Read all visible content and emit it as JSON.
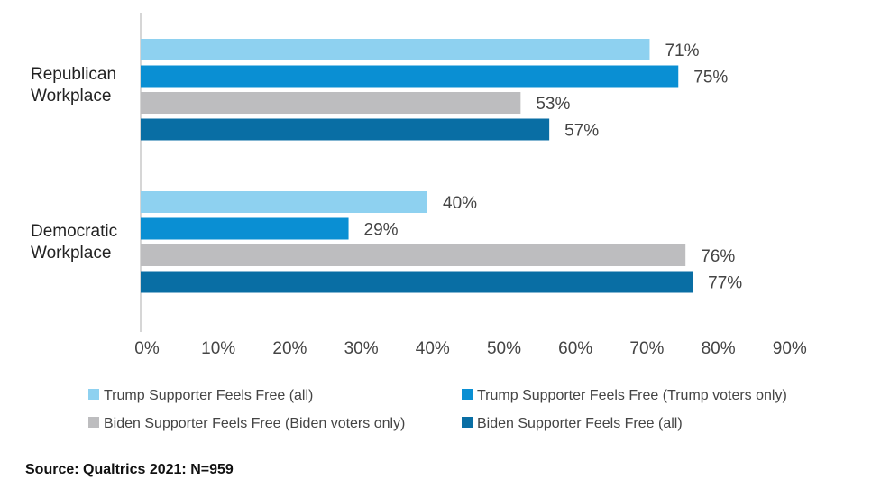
{
  "chart_data": {
    "type": "bar",
    "orientation": "horizontal",
    "title": "",
    "xlabel": "",
    "ylabel": "",
    "xlim": [
      0,
      90
    ],
    "x_ticks": [
      "0%",
      "10%",
      "20%",
      "30%",
      "40%",
      "50%",
      "60%",
      "70%",
      "80%",
      "90%"
    ],
    "categories": [
      {
        "lines": [
          "Republican",
          "Workplace"
        ]
      },
      {
        "lines": [
          "Democratic",
          "Workplace"
        ]
      }
    ],
    "series": [
      {
        "name": "Trump Supporter Feels Free (all)",
        "color": "#8ed1f0",
        "values": [
          71,
          40
        ],
        "labels": [
          "71%",
          "40%"
        ]
      },
      {
        "name": "Trump Supporter Feels Free (Trump voters only)",
        "color": "#0a8fd3",
        "values": [
          75,
          29
        ],
        "labels": [
          "75%",
          "29%"
        ]
      },
      {
        "name": "Biden Supporter Feels Free (Biden voters only)",
        "color": "#bdbdbf",
        "values": [
          53,
          76
        ],
        "labels": [
          "53%",
          "76%"
        ]
      },
      {
        "name": "Biden Supporter Feels Free (all)",
        "color": "#096ea4",
        "values": [
          57,
          77
        ],
        "labels": [
          "57%",
          "77%"
        ]
      }
    ],
    "grid": false,
    "legend_position": "bottom",
    "source": "Source: Qualtrics 2021: N=959"
  }
}
